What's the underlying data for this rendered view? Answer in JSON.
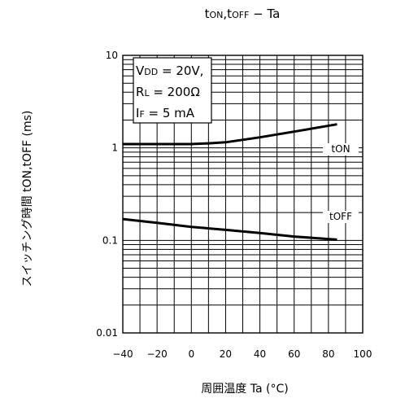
{
  "chart_data": {
    "type": "line",
    "title": "tON,tOFF − Ta",
    "title_parts": {
      "a": "t",
      "b": "ON",
      "c": ",t",
      "d": "OFF",
      "e": " − Ta"
    },
    "xlabel": "周囲温度  Ta (°C)",
    "ylabel": "スイッチング時間  tON,tOFF (ms)",
    "xlim": [
      -40,
      100
    ],
    "ylim": [
      0.01,
      10
    ],
    "y_scale": "log",
    "grid": true,
    "x_ticks": [
      "−40",
      "−20",
      "0",
      "20",
      "40",
      "60",
      "80",
      "100"
    ],
    "y_ticks": [
      "10",
      "1",
      "0.1",
      "0.01"
    ],
    "conditions": {
      "vdd": {
        "sym": "V",
        "sub": "DD",
        "val": " = 20V,"
      },
      "rl": {
        "sym": "R",
        "sub": "L",
        "val": " = 200Ω"
      },
      "if": {
        "sym": "I",
        "sub": "F",
        "val": " = 5 mA"
      }
    },
    "series": [
      {
        "name": "tON",
        "x": [
          -40,
          0,
          10,
          20,
          40,
          60,
          85
        ],
        "y": [
          1.1,
          1.1,
          1.12,
          1.15,
          1.3,
          1.5,
          1.8
        ]
      },
      {
        "name": "tOFF",
        "x": [
          -40,
          -20,
          0,
          20,
          40,
          60,
          85
        ],
        "y": [
          0.17,
          0.155,
          0.14,
          0.13,
          0.12,
          0.11,
          0.102
        ]
      }
    ]
  }
}
